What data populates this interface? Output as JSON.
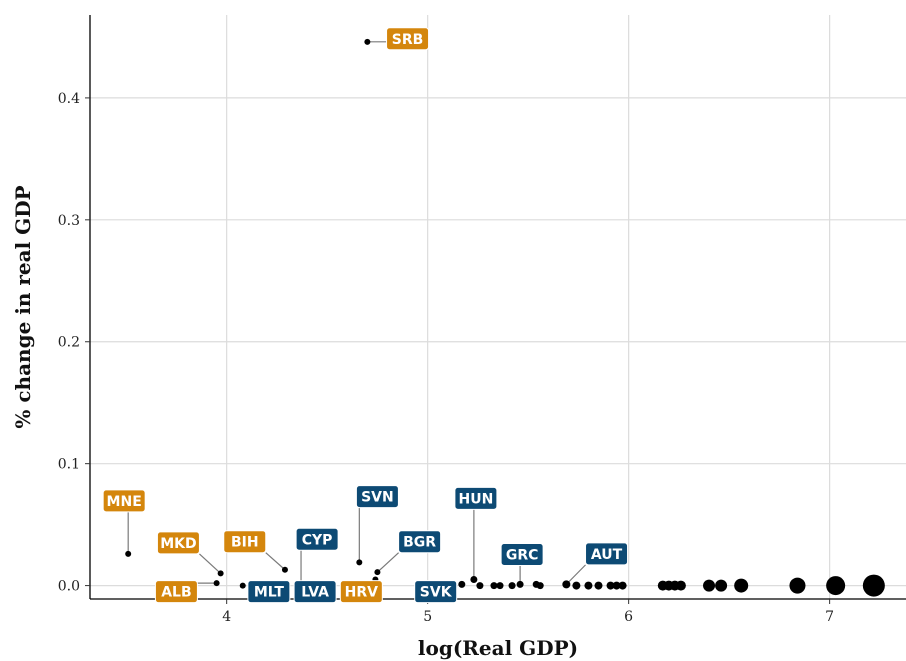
{
  "chart_data": {
    "type": "scatter",
    "xlabel": "log(Real GDP)",
    "ylabel": "% change in real GDP",
    "xlim": [
      3.32,
      7.38
    ],
    "ylim": [
      -0.011,
      0.468
    ],
    "x_ticks": [
      4,
      5,
      6,
      7
    ],
    "y_ticks": [
      0.0,
      0.1,
      0.2,
      0.3,
      0.4
    ],
    "x_tick_labels": [
      "4",
      "5",
      "6",
      "7"
    ],
    "y_tick_labels": [
      "0.0",
      "0.1",
      "0.2",
      "0.3",
      "0.4"
    ],
    "grid": true,
    "colors": {
      "orange": "#d4860c",
      "blue": "#0d4a74"
    },
    "points": [
      {
        "x": 3.51,
        "y": 0.026,
        "size": 3
      },
      {
        "x": 3.95,
        "y": 0.002,
        "size": 3
      },
      {
        "x": 3.97,
        "y": 0.01,
        "size": 3
      },
      {
        "x": 4.08,
        "y": 0.0,
        "size": 3
      },
      {
        "x": 4.29,
        "y": 0.013,
        "size": 3
      },
      {
        "x": 4.37,
        "y": 0.002,
        "size": 3
      },
      {
        "x": 4.66,
        "y": 0.019,
        "size": 3
      },
      {
        "x": 4.7,
        "y": 0.446,
        "size": 3
      },
      {
        "x": 4.74,
        "y": 0.005,
        "size": 3
      },
      {
        "x": 4.75,
        "y": 0.011,
        "size": 3
      },
      {
        "x": 5.17,
        "y": 0.001,
        "size": 3.5
      },
      {
        "x": 5.23,
        "y": 0.005,
        "size": 3.5
      },
      {
        "x": 5.26,
        "y": 0.0,
        "size": 3.5
      },
      {
        "x": 5.33,
        "y": 0.0,
        "size": 3.5
      },
      {
        "x": 5.36,
        "y": 0.0,
        "size": 3.5
      },
      {
        "x": 5.42,
        "y": 0.0,
        "size": 3.5
      },
      {
        "x": 5.46,
        "y": 0.001,
        "size": 3.5
      },
      {
        "x": 5.54,
        "y": 0.001,
        "size": 3.5
      },
      {
        "x": 5.56,
        "y": 0.0,
        "size": 3.5
      },
      {
        "x": 5.69,
        "y": 0.001,
        "size": 4
      },
      {
        "x": 5.74,
        "y": 0.0,
        "size": 4
      },
      {
        "x": 5.8,
        "y": 0.0,
        "size": 4
      },
      {
        "x": 5.85,
        "y": 0.0,
        "size": 4
      },
      {
        "x": 5.91,
        "y": 0.0,
        "size": 4
      },
      {
        "x": 5.94,
        "y": 0.0,
        "size": 4
      },
      {
        "x": 5.97,
        "y": 0.0,
        "size": 4
      },
      {
        "x": 6.17,
        "y": 0.0,
        "size": 5
      },
      {
        "x": 6.2,
        "y": 0.0,
        "size": 5
      },
      {
        "x": 6.23,
        "y": 0.0,
        "size": 5
      },
      {
        "x": 6.26,
        "y": 0.0,
        "size": 5
      },
      {
        "x": 6.4,
        "y": 0.0,
        "size": 6
      },
      {
        "x": 6.46,
        "y": 0.0,
        "size": 6
      },
      {
        "x": 6.56,
        "y": 0.0,
        "size": 7
      },
      {
        "x": 6.84,
        "y": 0.0,
        "size": 8
      },
      {
        "x": 7.03,
        "y": 0.0,
        "size": 9.5
      },
      {
        "x": 7.22,
        "y": 0.0,
        "size": 11
      }
    ],
    "labels": [
      {
        "text": "SRB",
        "x": 4.7,
        "y": 0.446,
        "color": "orange",
        "lx": 4.9,
        "ly": 0.4485
      },
      {
        "text": "MNE",
        "x": 3.51,
        "y": 0.026,
        "color": "orange",
        "lx": 3.49,
        "ly": 0.0695
      },
      {
        "text": "MKD",
        "x": 3.97,
        "y": 0.01,
        "color": "orange",
        "lx": 3.76,
        "ly": 0.035
      },
      {
        "text": "BIH",
        "x": 4.29,
        "y": 0.013,
        "color": "orange",
        "lx": 4.09,
        "ly": 0.036
      },
      {
        "text": "ALB",
        "x": 3.95,
        "y": 0.002,
        "color": "orange",
        "lx": 3.75,
        "ly": -0.005
      },
      {
        "text": "HRV",
        "x": 4.74,
        "y": 0.005,
        "color": "orange",
        "lx": 4.67,
        "ly": -0.005
      },
      {
        "text": "CYP",
        "x": 4.37,
        "y": 0.002,
        "color": "blue",
        "lx": 4.45,
        "ly": 0.038
      },
      {
        "text": "MLT",
        "x": 4.08,
        "y": 0.0,
        "color": "blue",
        "lx": 4.21,
        "ly": -0.005
      },
      {
        "text": "LVA",
        "x": 4.37,
        "y": 0.002,
        "color": "blue",
        "lx": 4.44,
        "ly": -0.005
      },
      {
        "text": "SVN",
        "x": 4.66,
        "y": 0.019,
        "color": "blue",
        "lx": 4.75,
        "ly": 0.073
      },
      {
        "text": "BGR",
        "x": 4.75,
        "y": 0.011,
        "color": "blue",
        "lx": 4.96,
        "ly": 0.036
      },
      {
        "text": "SVK",
        "x": 5.17,
        "y": 0.001,
        "color": "blue",
        "lx": 5.04,
        "ly": -0.005
      },
      {
        "text": "HUN",
        "x": 5.23,
        "y": 0.005,
        "color": "blue",
        "lx": 5.24,
        "ly": 0.0715
      },
      {
        "text": "GRC",
        "x": 5.46,
        "y": 0.001,
        "color": "blue",
        "lx": 5.47,
        "ly": 0.0255
      },
      {
        "text": "AUT",
        "x": 5.69,
        "y": 0.001,
        "color": "blue",
        "lx": 5.89,
        "ly": 0.026
      }
    ]
  }
}
